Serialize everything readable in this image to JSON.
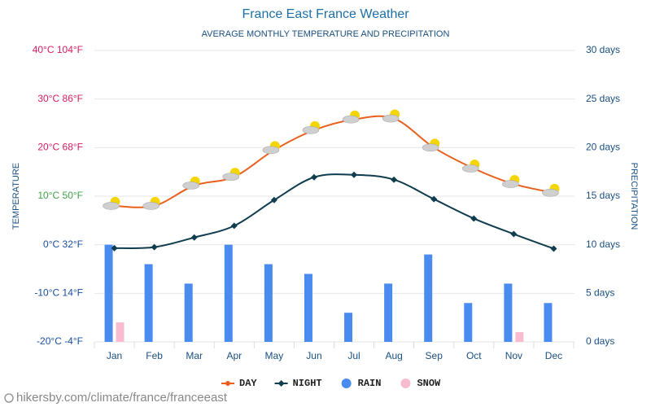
{
  "chart_data": {
    "type": "line-bar",
    "title": "France East France Weather",
    "subtitle": "AVERAGE MONTHLY TEMPERATURE AND PRECIPITATION",
    "y_label": "TEMPERATURE",
    "y2_label": "PRECIPITATION",
    "source": "hikersby.com/climate/france/franceeast",
    "categories": [
      "Jan",
      "Feb",
      "Mar",
      "Apr",
      "May",
      "Jun",
      "Jul",
      "Aug",
      "Sep",
      "Oct",
      "Nov",
      "Dec"
    ],
    "ylim": [
      -20,
      40
    ],
    "yticks": [
      {
        "value": -20,
        "label": "-20°C -4°F",
        "color": "#1a4fa0"
      },
      {
        "value": -10,
        "label": "-10°C 14°F",
        "color": "#1a4fa0"
      },
      {
        "value": 0,
        "label": "0°C 32°F",
        "color": "#1a4fa0"
      },
      {
        "value": 10,
        "label": "10°C 50°F",
        "color": "#43a047"
      },
      {
        "value": 20,
        "label": "20°C 68°F",
        "color": "#d81b60"
      },
      {
        "value": 30,
        "label": "30°C 86°F",
        "color": "#d81b60"
      },
      {
        "value": 40,
        "label": "40°C 104°F",
        "color": "#d81b60"
      }
    ],
    "y2lim": [
      0,
      30
    ],
    "y2ticks": [
      {
        "value": 0,
        "label": "0 days"
      },
      {
        "value": 5,
        "label": "5 days"
      },
      {
        "value": 10,
        "label": "10 days"
      },
      {
        "value": 15,
        "label": "15 days"
      },
      {
        "value": 20,
        "label": "20 days"
      },
      {
        "value": 25,
        "label": "25 days"
      },
      {
        "value": 30,
        "label": "30 days"
      }
    ],
    "grid": true,
    "series": [
      {
        "name": "DAY",
        "kind": "line",
        "color": "#e8601c",
        "values": [
          8,
          8,
          12.2,
          14,
          19.5,
          23.6,
          25.8,
          26,
          20,
          15.7,
          12.5,
          10.7
        ]
      },
      {
        "name": "NIGHT",
        "kind": "line",
        "color": "#0f3d4f",
        "values": [
          -0.7,
          -0.5,
          1.5,
          3.9,
          9.2,
          13.9,
          14.4,
          13.4,
          9.4,
          5.4,
          2.2,
          -0.8
        ]
      },
      {
        "name": "RAIN",
        "kind": "bar",
        "axis": "y2",
        "color": "#4a8bef",
        "values": [
          10,
          8,
          6,
          10,
          8,
          7,
          3,
          6,
          9,
          4,
          6,
          4
        ]
      },
      {
        "name": "SNOW",
        "kind": "bar",
        "axis": "y2",
        "color": "#f8bbd0",
        "values": [
          2,
          0,
          0,
          0,
          0,
          0,
          0,
          0,
          0,
          0,
          1,
          0
        ]
      }
    ]
  }
}
